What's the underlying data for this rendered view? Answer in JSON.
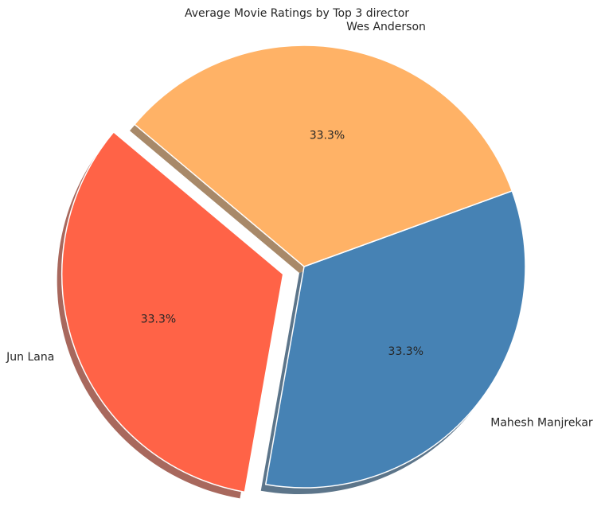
{
  "chart_data": {
    "type": "pie",
    "title": "Average Movie Ratings by Top 3 director",
    "slices": [
      {
        "label": "Jun Lana",
        "value": 33.3,
        "pct_label": "33.3%",
        "color": "#ff6347",
        "exploded": true
      },
      {
        "label": "Mahesh Manjrekar",
        "value": 33.3,
        "pct_label": "33.3%",
        "color": "#4682b4",
        "exploded": false
      },
      {
        "label": "Wes Anderson",
        "value": 33.3,
        "pct_label": "33.3%",
        "color": "#ffb266",
        "exploded": false
      }
    ],
    "start_angle_deg": 140,
    "shadow": true,
    "legend": "none"
  }
}
